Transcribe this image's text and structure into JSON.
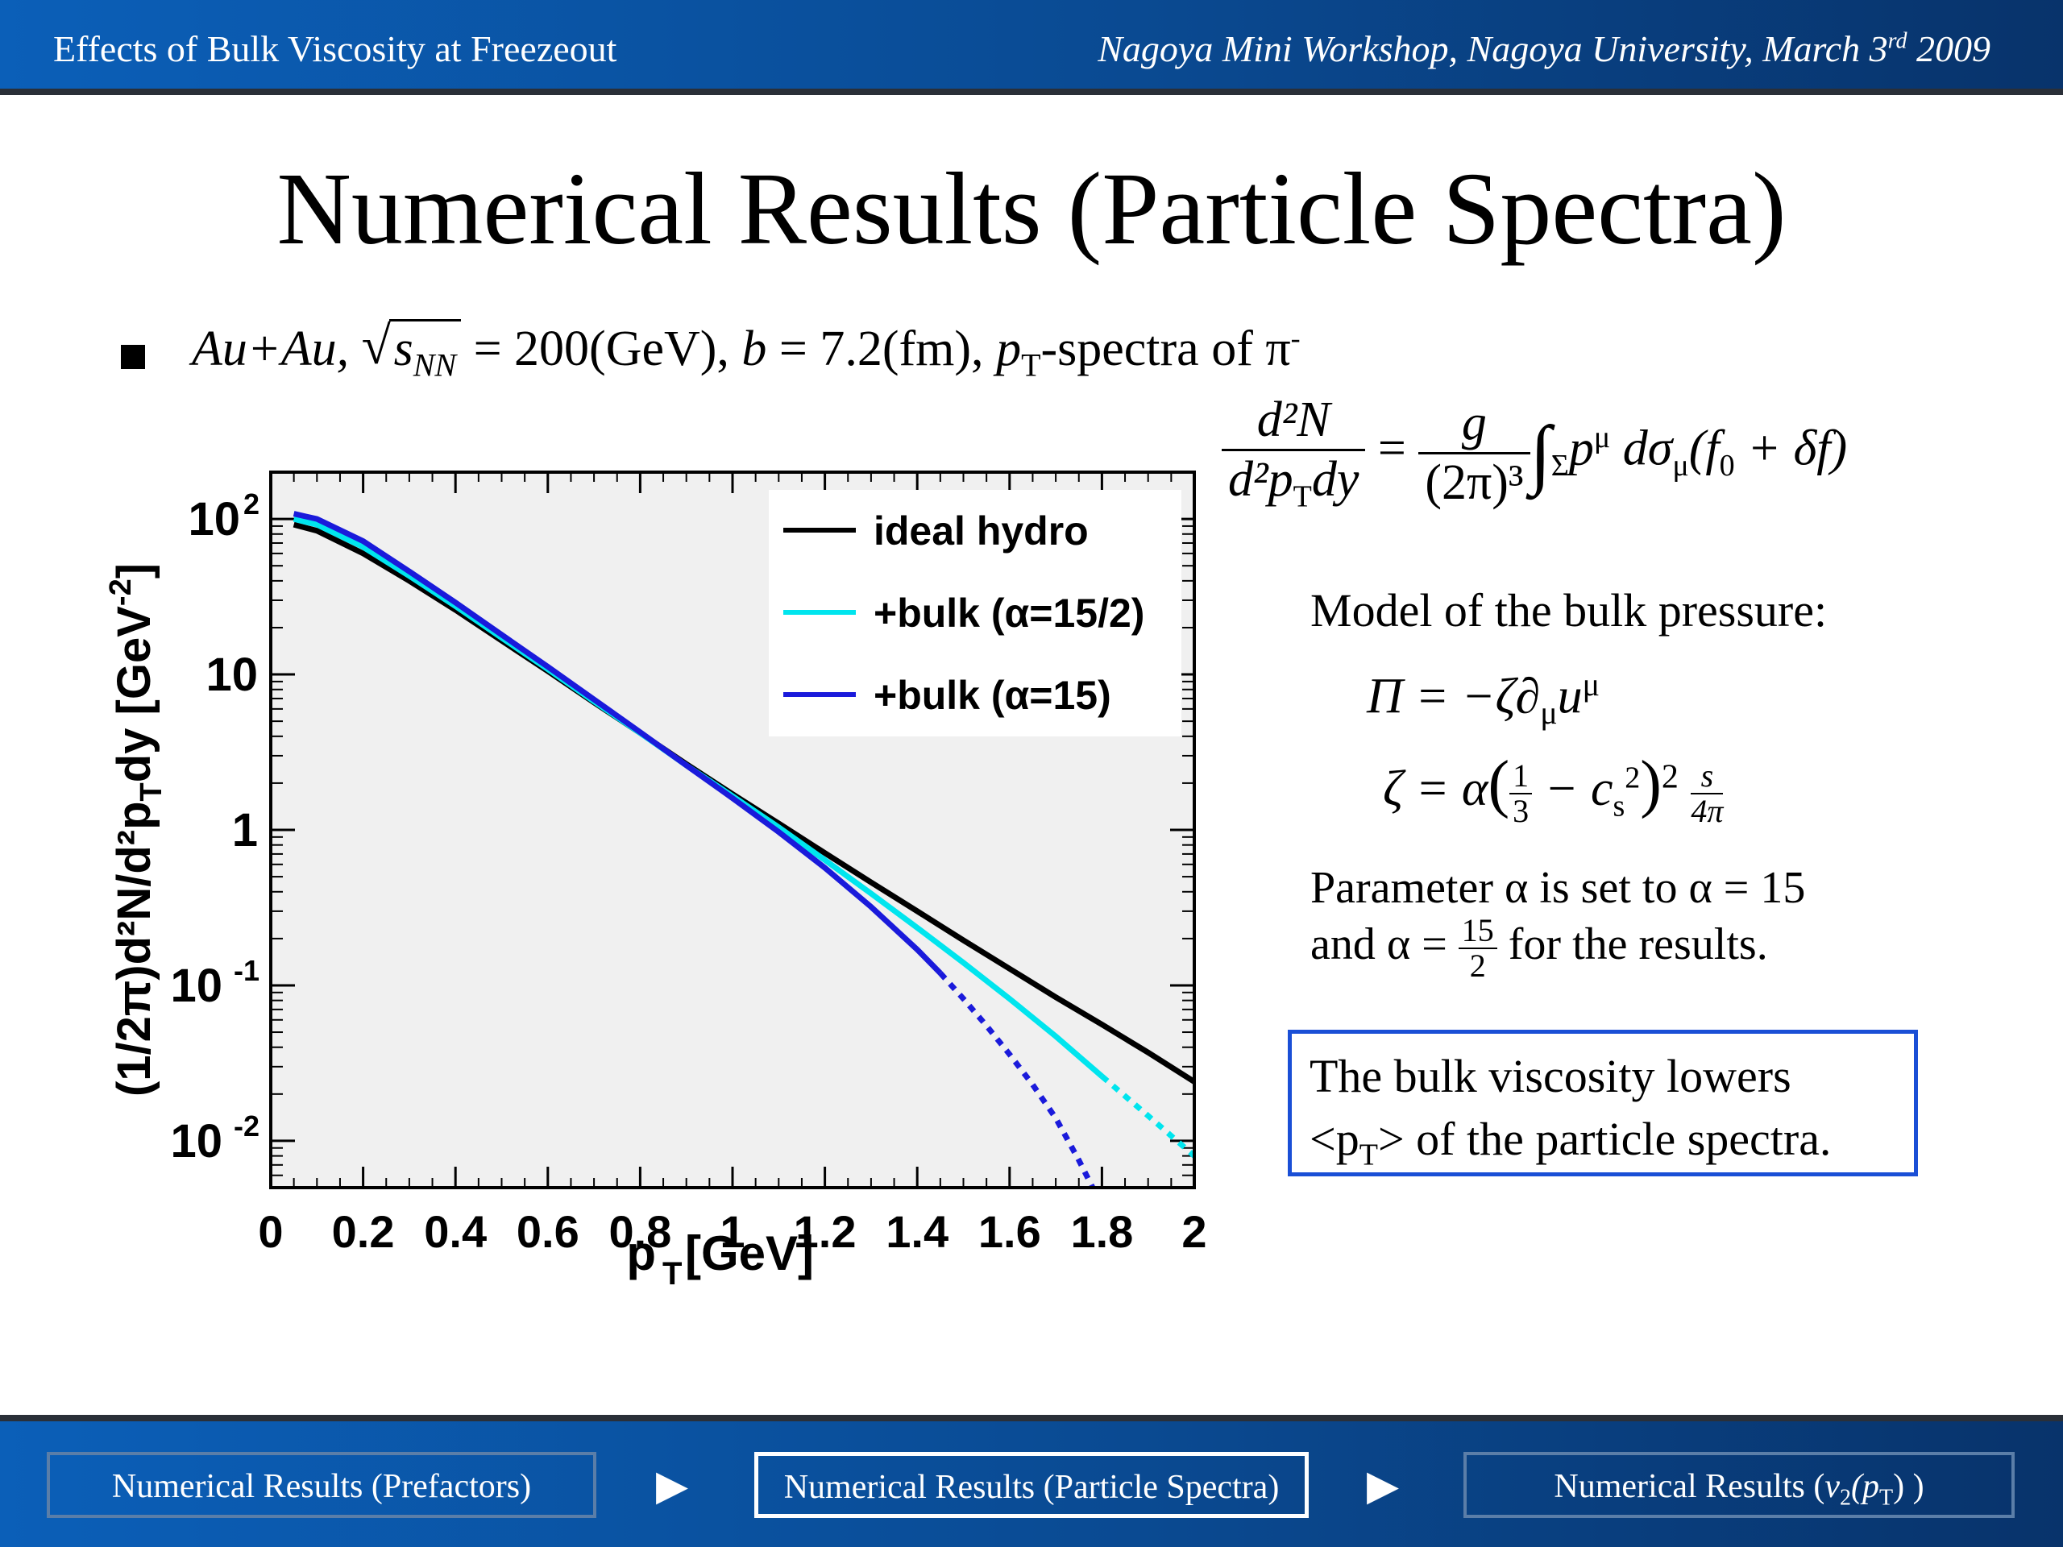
{
  "header": {
    "left_title": "Effects of Bulk Viscosity at Freezeout",
    "right_prefix": "Nagoya Mini Workshop, Nagoya University, March 3",
    "right_sup": "rd",
    "right_suffix": " 2009"
  },
  "slide": {
    "title": "Numerical Results (Particle Spectra)",
    "bullet": {
      "system": "Au+Au, ",
      "sqrt_arg": "s",
      "sqrt_sub": "NN",
      "energy": " = 200(GeV), ",
      "b_label": "b",
      "b_value": " = 7.2(fm), ",
      "pt": "p",
      "pt_sub": "T",
      "rest": "-spectra of π",
      "rest_sup": "-"
    },
    "formula": {
      "lhs_num": "d²N",
      "lhs_den": "d²p",
      "lhs_den_sub": "T",
      "lhs_den_tail": "dy",
      "eq": " = ",
      "rhs_num": "g",
      "rhs_den": "(2π)³",
      "integral": "∫",
      "integral_sub": "Σ",
      "integrand": "p",
      "integrand_sup": "μ",
      "dsigma": " dσ",
      "dsigma_sub": "μ",
      "tail": "(f",
      "tail_sub": "0",
      "tail_end": " + δf)"
    },
    "model_heading": "Model of the bulk pressure:",
    "pi_eq": "Π = −ζ∂",
    "pi_eq_sub": "μ",
    "pi_eq_tail": "u",
    "pi_eq_sup": "μ",
    "zeta_lhs": "ζ = α",
    "zeta_mid_num": "1",
    "zeta_mid_den": "3",
    "zeta_minus": " − c",
    "zeta_cs_sub": "s",
    "zeta_cs_sup": "2",
    "zeta_sq": "2",
    "zeta_end_num": "s",
    "zeta_end_den": "4π",
    "param_line1": "Parameter α is set to α = 15",
    "param_line2_pre": "and α = ",
    "param_frac_num": "15",
    "param_frac_den": "2",
    "param_line2_post": " for the results.",
    "note_line1": "The bulk viscosity lowers",
    "note_line2_pre": "<p",
    "note_line2_sub": "T",
    "note_line2_post": "> of the particle spectra."
  },
  "footer": {
    "prev": "Numerical Results (Prefactors)",
    "current": "Numerical Results (Particle Spectra)",
    "next_pre": "Numerical Results (",
    "next_v": "v",
    "next_v_sub": "2",
    "next_mid": "(p",
    "next_pt_sub": "T",
    "next_end": ") )",
    "arrow": "▶"
  },
  "colors": {
    "ideal": "#000000",
    "bulk_half": "#00e5ee",
    "bulk_full": "#1a1adb",
    "plot_bg": "#f0f0f0"
  },
  "chart_data": {
    "type": "line",
    "xlabel": "p",
    "xlabel_sub": "T",
    "xlabel_unit": " [GeV]",
    "ylabel": "(1/2π)d²N/d²p",
    "ylabel_sub": "T",
    "ylabel_tail": "dy [GeV",
    "ylabel_sup": "-2",
    "ylabel_end": "]",
    "xlim": [
      0,
      2
    ],
    "ylim": [
      0.005,
      200
    ],
    "y_scale": "log",
    "x_ticks": [
      "0",
      "0.2",
      "0.4",
      "0.6",
      "0.8",
      "1",
      "1.2",
      "1.4",
      "1.6",
      "1.8",
      "2"
    ],
    "y_ticks": [
      {
        "base": "10",
        "exp": "2",
        "value": 100
      },
      {
        "base": "10",
        "exp": "",
        "value": 10
      },
      {
        "base": "1",
        "exp": "",
        "value": 1
      },
      {
        "base": "10",
        "exp": "-1",
        "value": 0.1
      },
      {
        "base": "10",
        "exp": "-2",
        "value": 0.01
      }
    ],
    "legend_position": "top-right",
    "series": [
      {
        "name": "ideal hydro",
        "color_key": "ideal",
        "style": "solid",
        "x": [
          0.05,
          0.1,
          0.2,
          0.3,
          0.4,
          0.5,
          0.6,
          0.7,
          0.8,
          0.9,
          1.0,
          1.1,
          1.2,
          1.3,
          1.4,
          1.5,
          1.6,
          1.7,
          1.8,
          1.9,
          2.0
        ],
        "y": [
          92,
          84,
          60,
          40,
          26,
          16.5,
          10.5,
          6.6,
          4.2,
          2.65,
          1.7,
          1.1,
          0.71,
          0.46,
          0.3,
          0.195,
          0.128,
          0.084,
          0.056,
          0.037,
          0.024
        ]
      },
      {
        "name": "+bulk (α=15/2)",
        "color_key": "bulk_half",
        "style": "solid",
        "dashed_from": 1.8,
        "x": [
          0.05,
          0.1,
          0.2,
          0.3,
          0.4,
          0.5,
          0.6,
          0.7,
          0.8,
          0.9,
          1.0,
          1.1,
          1.2,
          1.3,
          1.4,
          1.5,
          1.6,
          1.7,
          1.8,
          1.9,
          2.0
        ],
        "y": [
          100,
          92,
          66,
          43,
          27.5,
          17.2,
          10.8,
          6.7,
          4.2,
          2.6,
          1.65,
          1.04,
          0.64,
          0.39,
          0.235,
          0.14,
          0.082,
          0.047,
          0.026,
          0.0145,
          0.008
        ]
      },
      {
        "name": "+bulk (α=15)",
        "color_key": "bulk_full",
        "style": "solid",
        "dashed_from": 1.45,
        "x": [
          0.05,
          0.1,
          0.2,
          0.3,
          0.4,
          0.5,
          0.6,
          0.7,
          0.8,
          0.9,
          1.0,
          1.1,
          1.2,
          1.3,
          1.4,
          1.45,
          1.5,
          1.55,
          1.6,
          1.65,
          1.7,
          1.75,
          1.78
        ],
        "y": [
          108,
          100,
          72,
          46,
          29,
          18,
          11.2,
          6.9,
          4.25,
          2.6,
          1.6,
          0.97,
          0.57,
          0.32,
          0.17,
          0.12,
          0.082,
          0.055,
          0.036,
          0.023,
          0.014,
          0.0075,
          0.005
        ]
      }
    ]
  }
}
